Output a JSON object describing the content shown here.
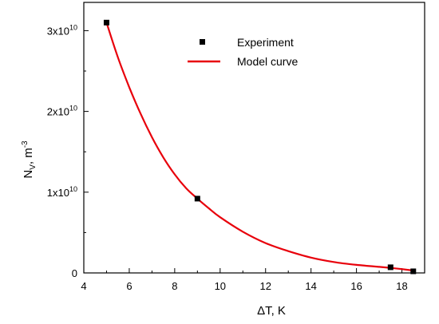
{
  "chart_data": {
    "type": "scatter",
    "title": "",
    "xlabel": "ΔT, K",
    "ylabel": {
      "base": "N",
      "sub": "V",
      "suffix": ", m",
      "sup": "-3"
    },
    "xlim": [
      4,
      19
    ],
    "ylim": [
      0,
      33500000000
    ],
    "x_ticks": [
      4,
      6,
      8,
      10,
      12,
      14,
      16,
      18
    ],
    "x_tick_labels": [
      "4",
      "6",
      "8",
      "10",
      "12",
      "14",
      "16",
      "18"
    ],
    "y_ticks": [
      {
        "value": 0,
        "mantissa": "0",
        "exp": ""
      },
      {
        "value": 10000000000,
        "mantissa": "1x10",
        "exp": "10"
      },
      {
        "value": 20000000000,
        "mantissa": "2x10",
        "exp": "10"
      },
      {
        "value": 30000000000,
        "mantissa": "3x10",
        "exp": "10"
      }
    ],
    "grid": false,
    "legend_position": "top-center",
    "series": [
      {
        "name": "Experiment",
        "kind": "markers",
        "color": "#000000",
        "x": [
          5,
          9,
          17.5,
          18.5
        ],
        "y": [
          31000000000,
          9200000000,
          700000000,
          200000000
        ]
      },
      {
        "name": "Model curve",
        "kind": "line",
        "color": "#e8000b",
        "x": [
          5,
          5.5,
          6,
          6.5,
          7,
          7.5,
          8,
          8.5,
          9,
          9.5,
          10,
          11,
          12,
          13,
          14,
          15,
          16,
          17,
          17.5,
          18,
          18.5
        ],
        "y": [
          31000000000,
          26700000000,
          23000000000,
          19700000000,
          16800000000,
          14300000000,
          12200000000,
          10500000000,
          9200000000,
          8000000000,
          6900000000,
          5100000000,
          3700000000,
          2700000000,
          1900000000,
          1350000000,
          1000000000,
          750000000,
          620000000,
          470000000,
          300000000
        ]
      }
    ]
  }
}
